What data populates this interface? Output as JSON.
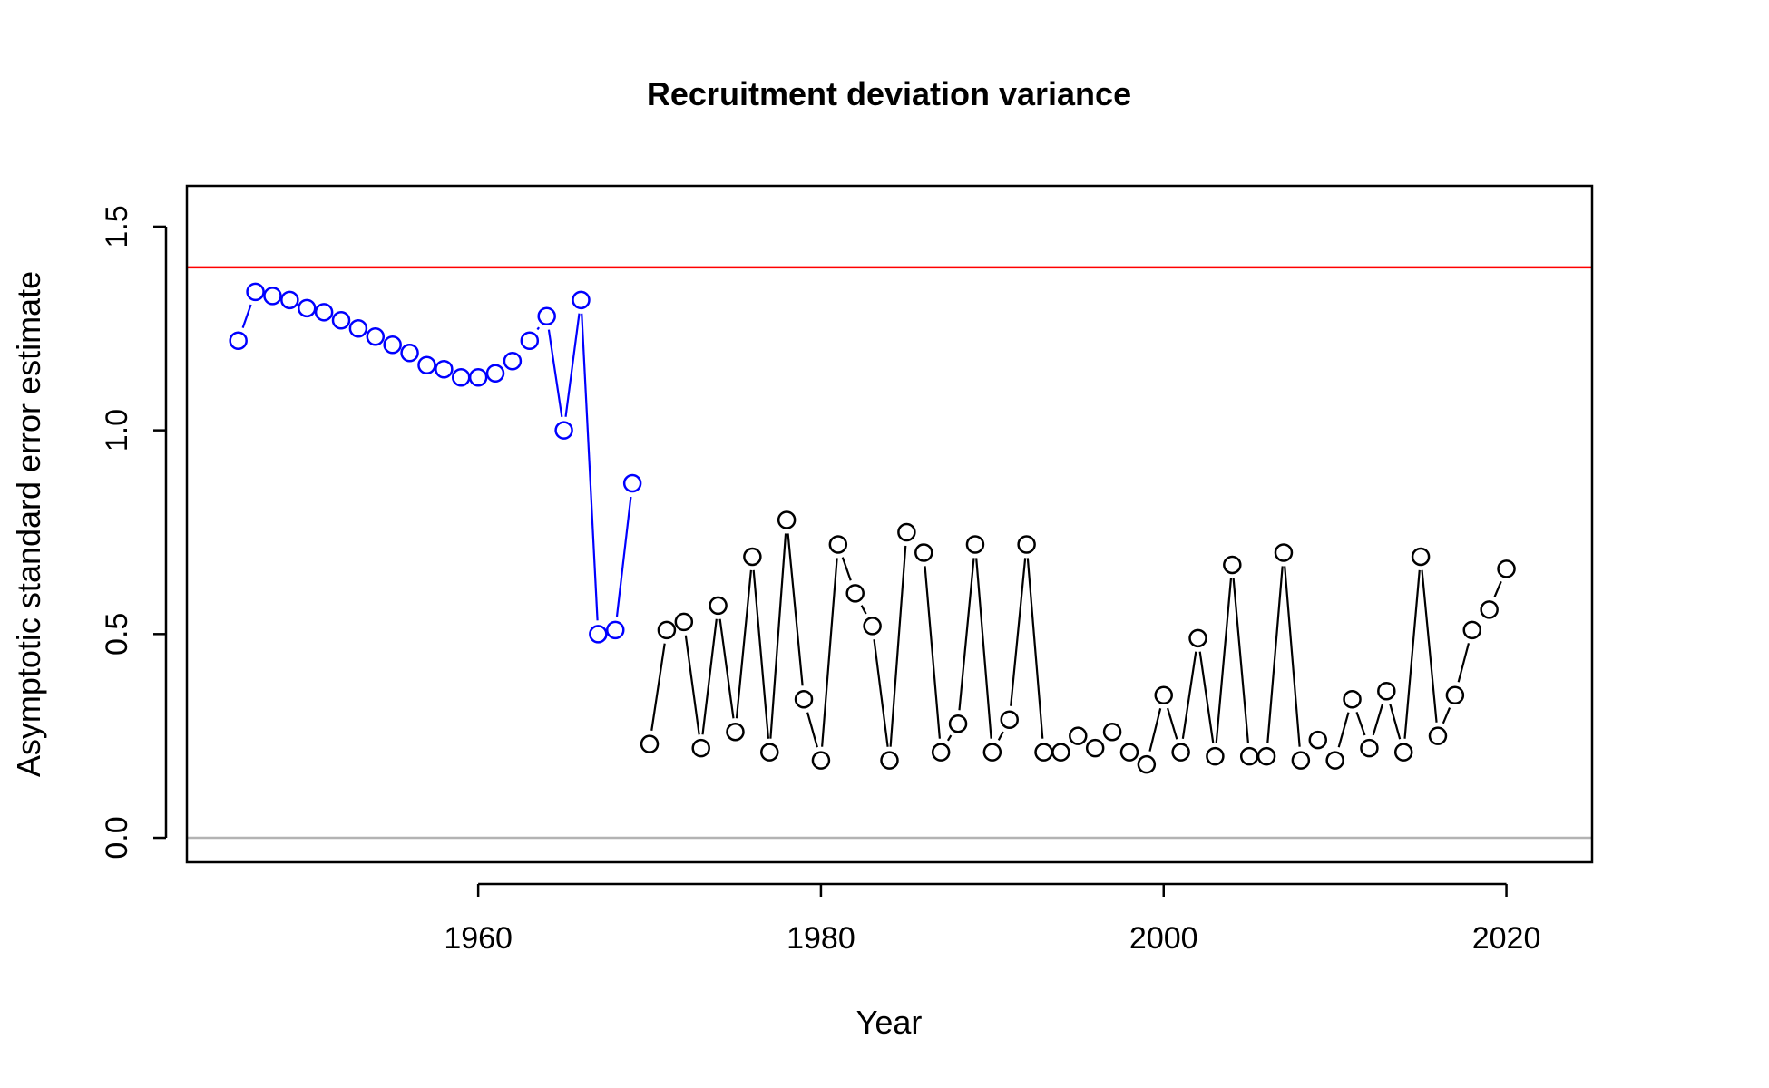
{
  "chart_data": {
    "type": "line",
    "title": "Recruitment deviation variance",
    "xlabel": "Year",
    "ylabel": "Asymptotic standard error estimate",
    "xlim": [
      1943,
      2025
    ],
    "ylim": [
      -0.06,
      1.6
    ],
    "xticks": [
      1960,
      1980,
      2000,
      2020
    ],
    "yticks": [
      0.0,
      0.5,
      1.0,
      1.5
    ],
    "xtick_labels": [
      "1960",
      "1980",
      "2000",
      "2020"
    ],
    "ytick_labels": [
      "0.0",
      "0.5",
      "1.0",
      "1.5"
    ],
    "reference_lines": [
      {
        "y": 1.4,
        "color": "#ff0000"
      },
      {
        "y": 0.0,
        "color": "#b3b3b3"
      }
    ],
    "grid": false,
    "series": [
      {
        "color": "#0000ff",
        "marker": "open-circle",
        "x": [
          1946,
          1947,
          1948,
          1949,
          1950,
          1951,
          1952,
          1953,
          1954,
          1955,
          1956,
          1957,
          1958,
          1959,
          1960,
          1961,
          1962,
          1963,
          1964,
          1965,
          1966,
          1967,
          1968,
          1969
        ],
        "values": [
          1.22,
          1.34,
          1.33,
          1.32,
          1.3,
          1.29,
          1.27,
          1.25,
          1.23,
          1.21,
          1.19,
          1.16,
          1.15,
          1.13,
          1.13,
          1.14,
          1.17,
          1.22,
          1.28,
          1.0,
          1.32,
          0.5,
          0.51,
          0.87
        ]
      },
      {
        "color": "#000000",
        "marker": "open-circle",
        "x": [
          1970,
          1971,
          1972,
          1973,
          1974,
          1975,
          1976,
          1977,
          1978,
          1979,
          1980,
          1981,
          1982,
          1983,
          1984,
          1985,
          1986,
          1987,
          1988,
          1989,
          1990,
          1991,
          1992,
          1993,
          1994,
          1995,
          1996,
          1997,
          1998,
          1999,
          2000,
          2001,
          2002,
          2003,
          2004,
          2005,
          2006,
          2007,
          2008,
          2009,
          2010,
          2011,
          2012,
          2013,
          2014,
          2015,
          2016,
          2017,
          2018,
          2019,
          2020
        ],
        "values": [
          0.23,
          0.51,
          0.53,
          0.22,
          0.57,
          0.26,
          0.69,
          0.21,
          0.78,
          0.34,
          0.19,
          0.72,
          0.6,
          0.52,
          0.19,
          0.75,
          0.7,
          0.21,
          0.28,
          0.72,
          0.21,
          0.29,
          0.72,
          0.21,
          0.21,
          0.25,
          0.22,
          0.26,
          0.21,
          0.18,
          0.35,
          0.21,
          0.49,
          0.2,
          0.67,
          0.2,
          0.2,
          0.7,
          0.19,
          0.24,
          0.19,
          0.34,
          0.22,
          0.36,
          0.21,
          0.69,
          0.25,
          0.35,
          0.51,
          0.56,
          0.66
        ]
      }
    ]
  }
}
